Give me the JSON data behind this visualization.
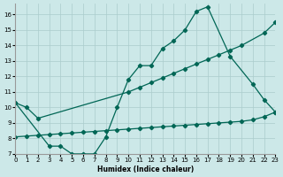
{
  "bg_color": "#cce8e8",
  "grid_color": "#aacccc",
  "line_color": "#006655",
  "xlabel": "Humidex (Indice chaleur)",
  "xlim": [
    0,
    23
  ],
  "ylim": [
    7,
    16.7
  ],
  "xticks": [
    0,
    1,
    2,
    3,
    4,
    5,
    6,
    7,
    8,
    9,
    10,
    11,
    12,
    13,
    14,
    15,
    16,
    17,
    18,
    19,
    20,
    21,
    22,
    23
  ],
  "yticks": [
    7,
    8,
    9,
    10,
    11,
    12,
    13,
    14,
    15,
    16
  ],
  "bottom_line_x": [
    0,
    1,
    2,
    3,
    4,
    5,
    6,
    7,
    8,
    9,
    10,
    11,
    12,
    13,
    14,
    15,
    16,
    17,
    18,
    19,
    20,
    21,
    22,
    23
  ],
  "bottom_line_y": [
    8.1,
    8.15,
    8.2,
    8.25,
    8.3,
    8.35,
    8.4,
    8.45,
    8.5,
    8.55,
    8.6,
    8.65,
    8.7,
    8.75,
    8.8,
    8.85,
    8.9,
    8.95,
    9.0,
    9.05,
    9.1,
    9.2,
    9.4,
    9.7
  ],
  "mid_line_x": [
    0,
    1,
    2,
    10,
    11,
    12,
    13,
    14,
    15,
    16,
    17,
    18,
    19,
    20,
    22,
    23
  ],
  "mid_line_y": [
    10.3,
    10.0,
    9.3,
    11.0,
    11.3,
    11.6,
    11.9,
    12.2,
    12.5,
    12.8,
    13.1,
    13.4,
    13.7,
    14.0,
    14.8,
    15.5
  ],
  "top_line_x": [
    0,
    3,
    4,
    5,
    6,
    7,
    8,
    9,
    10,
    11,
    12,
    13,
    14,
    15,
    16,
    17,
    19,
    21,
    22,
    23
  ],
  "top_line_y": [
    10.3,
    7.5,
    7.5,
    7.0,
    7.0,
    7.0,
    8.1,
    10.0,
    11.8,
    12.7,
    12.7,
    13.8,
    14.3,
    15.0,
    16.2,
    16.5,
    13.3,
    11.5,
    10.5,
    9.7
  ]
}
